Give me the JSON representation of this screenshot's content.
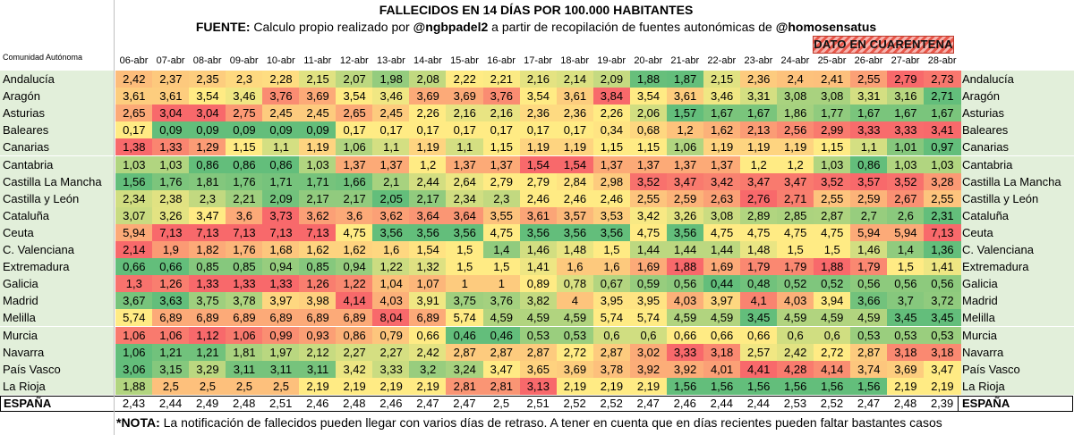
{
  "title": "FALLECIDOS EN 14 DÍAS POR 100.000 HABITANTES",
  "source": {
    "prefix": "FUENTE:",
    "text1": " Calculo propio realizado por ",
    "handle1": "@ngbpadel2",
    "text2": " a partir de recopilación de fuentes autonómicas de ",
    "handle2": "@homosensatus"
  },
  "quarantine_label": "DATO EN CUARENTENA",
  "region_header": "Comunidad Autónoma",
  "note": {
    "prefix": "*NOTA:",
    "text": " La notificación de fallecidos pueden llegar con varios días de retraso. A tener en cuenta que en días recientes pueden faltar bastantes casos"
  },
  "colors": {
    "low": "#63be7b",
    "mid": "#ffeb84",
    "high": "#f8696b",
    "label_bg": "#e2efda"
  },
  "chart_data": {
    "type": "table",
    "title": "FALLECIDOS EN 14 DÍAS POR 100.000 HABITANTES",
    "columns": [
      "06-abr",
      "07-abr",
      "08-abr",
      "09-abr",
      "10-abr",
      "11-abr",
      "12-abr",
      "13-abr",
      "14-abr",
      "15-abr",
      "16-abr",
      "17-abr",
      "18-abr",
      "19-abr",
      "20-abr",
      "21-abr",
      "22-abr",
      "23-abr",
      "24-abr",
      "25-abr",
      "26-abr",
      "27-abr",
      "28-abr"
    ],
    "rows": [
      {
        "name": "Andalucía",
        "values": [
          "2,42",
          "2,37",
          "2,35",
          "2,3",
          "2,28",
          "2,15",
          "2,07",
          "1,98",
          "2,08",
          "2,22",
          "2,21",
          "2,16",
          "2,14",
          "2,09",
          "1,88",
          "1,87",
          "2,15",
          "2,36",
          "2,4",
          "2,41",
          "2,55",
          "2,79",
          "2,73"
        ]
      },
      {
        "name": "Aragón",
        "values": [
          "3,61",
          "3,61",
          "3,54",
          "3,46",
          "3,76",
          "3,69",
          "3,54",
          "3,46",
          "3,69",
          "3,69",
          "3,76",
          "3,54",
          "3,61",
          "3,84",
          "3,54",
          "3,61",
          "3,46",
          "3,31",
          "3,08",
          "3,08",
          "3,31",
          "3,16",
          "2,71"
        ]
      },
      {
        "name": "Asturias",
        "values": [
          "2,65",
          "3,04",
          "3,04",
          "2,75",
          "2,45",
          "2,45",
          "2,65",
          "2,45",
          "2,26",
          "2,16",
          "2,16",
          "2,36",
          "2,36",
          "2,26",
          "2,06",
          "1,57",
          "1,67",
          "1,67",
          "1,86",
          "1,77",
          "1,67",
          "1,67",
          "1,67"
        ]
      },
      {
        "name": "Baleares",
        "values": [
          "0,17",
          "0,09",
          "0,09",
          "0,09",
          "0,09",
          "0,09",
          "0,17",
          "0,17",
          "0,17",
          "0,17",
          "0,17",
          "0,17",
          "0,17",
          "0,34",
          "0,68",
          "1,2",
          "1,62",
          "2,13",
          "2,56",
          "2,99",
          "3,33",
          "3,33",
          "3,41"
        ]
      },
      {
        "name": "Canarias",
        "values": [
          "1,38",
          "1,33",
          "1,29",
          "1,15",
          "1,1",
          "1,19",
          "1,06",
          "1,1",
          "1,19",
          "1,1",
          "1,15",
          "1,19",
          "1,19",
          "1,15",
          "1,15",
          "1,06",
          "1,19",
          "1,19",
          "1,19",
          "1,15",
          "1,1",
          "1,01",
          "0,97"
        ]
      },
      {
        "name": "Cantabria",
        "values": [
          "1,03",
          "1,03",
          "0,86",
          "0,86",
          "0,86",
          "1,03",
          "1,37",
          "1,37",
          "1,2",
          "1,37",
          "1,37",
          "1,54",
          "1,54",
          "1,37",
          "1,37",
          "1,37",
          "1,37",
          "1,2",
          "1,2",
          "1,03",
          "0,86",
          "1,03",
          "1,03"
        ]
      },
      {
        "name": "Castilla La Mancha",
        "values": [
          "1,56",
          "1,76",
          "1,81",
          "1,76",
          "1,71",
          "1,71",
          "1,66",
          "2,1",
          "2,44",
          "2,64",
          "2,79",
          "2,79",
          "2,84",
          "2,98",
          "3,52",
          "3,47",
          "3,42",
          "3,47",
          "3,47",
          "3,52",
          "3,57",
          "3,52",
          "3,28"
        ]
      },
      {
        "name": "Castilla y León",
        "values": [
          "2,34",
          "2,38",
          "2,3",
          "2,21",
          "2,09",
          "2,17",
          "2,17",
          "2,05",
          "2,17",
          "2,34",
          "2,3",
          "2,46",
          "2,46",
          "2,46",
          "2,55",
          "2,59",
          "2,63",
          "2,76",
          "2,71",
          "2,55",
          "2,59",
          "2,67",
          "2,55"
        ]
      },
      {
        "name": "Cataluña",
        "values": [
          "3,07",
          "3,26",
          "3,47",
          "3,6",
          "3,73",
          "3,62",
          "3,6",
          "3,62",
          "3,64",
          "3,64",
          "3,55",
          "3,61",
          "3,57",
          "3,53",
          "3,42",
          "3,26",
          "3,08",
          "2,89",
          "2,85",
          "2,87",
          "2,7",
          "2,6",
          "2,31"
        ]
      },
      {
        "name": "Ceuta",
        "values": [
          "5,94",
          "7,13",
          "7,13",
          "7,13",
          "7,13",
          "7,13",
          "4,75",
          "3,56",
          "3,56",
          "3,56",
          "4,75",
          "3,56",
          "3,56",
          "3,56",
          "4,75",
          "3,56",
          "4,75",
          "4,75",
          "4,75",
          "4,75",
          "5,94",
          "5,94",
          "7,13"
        ]
      },
      {
        "name": "C. Valenciana",
        "values": [
          "2,14",
          "1,9",
          "1,82",
          "1,76",
          "1,68",
          "1,62",
          "1,62",
          "1,6",
          "1,54",
          "1,5",
          "1,4",
          "1,46",
          "1,48",
          "1,5",
          "1,44",
          "1,44",
          "1,44",
          "1,48",
          "1,5",
          "1,5",
          "1,46",
          "1,4",
          "1,36"
        ]
      },
      {
        "name": "Extremadura",
        "values": [
          "0,66",
          "0,66",
          "0,85",
          "0,85",
          "0,94",
          "0,85",
          "0,94",
          "1,22",
          "1,32",
          "1,5",
          "1,5",
          "1,41",
          "1,6",
          "1,6",
          "1,69",
          "1,88",
          "1,69",
          "1,79",
          "1,79",
          "1,88",
          "1,79",
          "1,5",
          "1,41"
        ]
      },
      {
        "name": "Galicia",
        "values": [
          "1,3",
          "1,26",
          "1,33",
          "1,33",
          "1,33",
          "1,26",
          "1,22",
          "1,04",
          "1,07",
          "1",
          "1",
          "0,89",
          "0,78",
          "0,67",
          "0,59",
          "0,56",
          "0,44",
          "0,48",
          "0,52",
          "0,52",
          "0,56",
          "0,56",
          "0,56"
        ]
      },
      {
        "name": "Madrid",
        "values": [
          "3,67",
          "3,63",
          "3,75",
          "3,78",
          "3,97",
          "3,98",
          "4,14",
          "4,03",
          "3,91",
          "3,75",
          "3,76",
          "3,82",
          "4",
          "3,95",
          "3,95",
          "4,03",
          "3,97",
          "4,1",
          "4,03",
          "3,94",
          "3,66",
          "3,7",
          "3,72"
        ]
      },
      {
        "name": "Melilla",
        "values": [
          "5,74",
          "6,89",
          "6,89",
          "6,89",
          "6,89",
          "6,89",
          "6,89",
          "8,04",
          "6,89",
          "5,74",
          "4,59",
          "4,59",
          "4,59",
          "5,74",
          "5,74",
          "4,59",
          "4,59",
          "3,45",
          "4,59",
          "4,59",
          "4,59",
          "3,45",
          "3,45"
        ]
      },
      {
        "name": "Murcia",
        "values": [
          "1,06",
          "1,06",
          "1,12",
          "1,06",
          "0,99",
          "0,93",
          "0,86",
          "0,79",
          "0,66",
          "0,46",
          "0,46",
          "0,53",
          "0,53",
          "0,6",
          "0,6",
          "0,66",
          "0,66",
          "0,66",
          "0,6",
          "0,6",
          "0,53",
          "0,53",
          "0,53"
        ]
      },
      {
        "name": "Navarra",
        "values": [
          "1,06",
          "1,21",
          "1,21",
          "1,81",
          "1,97",
          "2,12",
          "2,27",
          "2,27",
          "2,42",
          "2,87",
          "2,87",
          "2,87",
          "2,72",
          "2,87",
          "3,02",
          "3,33",
          "3,18",
          "2,57",
          "2,42",
          "2,72",
          "2,87",
          "3,18",
          "3,18"
        ]
      },
      {
        "name": "País Vasco",
        "values": [
          "3,06",
          "3,15",
          "3,29",
          "3,11",
          "3,11",
          "3,11",
          "3,42",
          "3,33",
          "3,2",
          "3,24",
          "3,47",
          "3,65",
          "3,69",
          "3,78",
          "3,92",
          "3,92",
          "4,01",
          "4,41",
          "4,28",
          "4,14",
          "3,74",
          "3,69",
          "3,47"
        ]
      },
      {
        "name": "La Rioja",
        "values": [
          "1,88",
          "2,5",
          "2,5",
          "2,5",
          "2,5",
          "2,19",
          "2,19",
          "2,19",
          "2,19",
          "2,81",
          "2,81",
          "3,13",
          "2,19",
          "2,19",
          "2,19",
          "1,56",
          "1,56",
          "1,56",
          "1,56",
          "1,56",
          "1,56",
          "2,19",
          "2,19"
        ]
      }
    ],
    "total": {
      "name": "ESPAÑA",
      "values": [
        "2,43",
        "2,44",
        "2,49",
        "2,48",
        "2,51",
        "2,46",
        "2,48",
        "2,46",
        "2,47",
        "2,47",
        "2,5",
        "2,51",
        "2,52",
        "2,52",
        "2,47",
        "2,46",
        "2,44",
        "2,44",
        "2,53",
        "2,52",
        "2,47",
        "2,48",
        "2,39"
      ]
    }
  }
}
